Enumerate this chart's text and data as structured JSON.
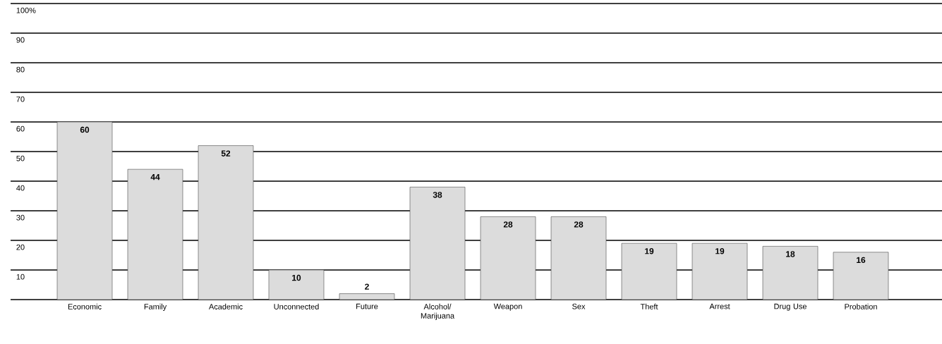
{
  "chart_data": {
    "type": "bar",
    "categories": [
      "Economic",
      "Family",
      "Academic",
      "Unconnected",
      "Future",
      "Alcohol/ Marijuana",
      "Weapon",
      "Sex",
      "Theft",
      "Arrest",
      "Drug Use",
      "Probation"
    ],
    "values": [
      60,
      44,
      52,
      10,
      2,
      38,
      28,
      28,
      19,
      19,
      18,
      16
    ],
    "color": "#dcdcdc",
    "ylim": [
      0,
      100
    ],
    "yticks": [
      10,
      20,
      30,
      40,
      50,
      60,
      70,
      80,
      90,
      {
        "value": 100,
        "label": "100%"
      }
    ],
    "grid": "y",
    "data_labels": true
  }
}
